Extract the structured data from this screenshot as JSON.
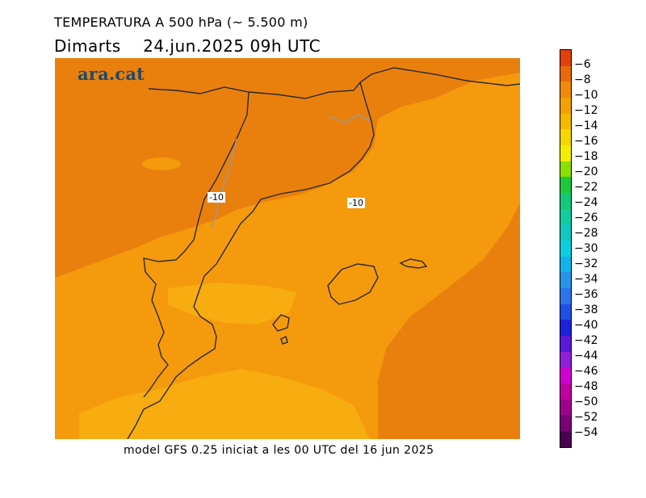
{
  "title_line1": "TEMPERATURA A 500 hPa (~ 5.500 m)",
  "title_line2": "Dimarts    24.jun.2025 09h UTC",
  "footer": "model GFS 0.25 iniciat a les 00 UTC del 16 jun 2025",
  "logo": "ara.cat",
  "contour_labels": [
    "-10",
    "-10"
  ],
  "colorbar": {
    "labels": [
      "−6",
      "−8",
      "−10",
      "−12",
      "−14",
      "−16",
      "−18",
      "−20",
      "−22",
      "−24",
      "−26",
      "−28",
      "−30",
      "−32",
      "−34",
      "−36",
      "−38",
      "−40",
      "−42",
      "−44",
      "−46",
      "−48",
      "−50",
      "−52",
      "−54"
    ],
    "colors": [
      "#e2400c",
      "#e86a0a",
      "#f08a0a",
      "#f5a000",
      "#f7b800",
      "#f6d800",
      "#f3ee00",
      "#8be000",
      "#1ec83c",
      "#15c878",
      "#12cca0",
      "#10c8c0",
      "#0ccee0",
      "#14b2ec",
      "#2894e8",
      "#2c74e8",
      "#2050e4",
      "#1c22d8",
      "#5a18d8",
      "#9020d8",
      "#d000d0",
      "#c000a0",
      "#a00090",
      "#7a0078",
      "#4a0050"
    ]
  }
}
